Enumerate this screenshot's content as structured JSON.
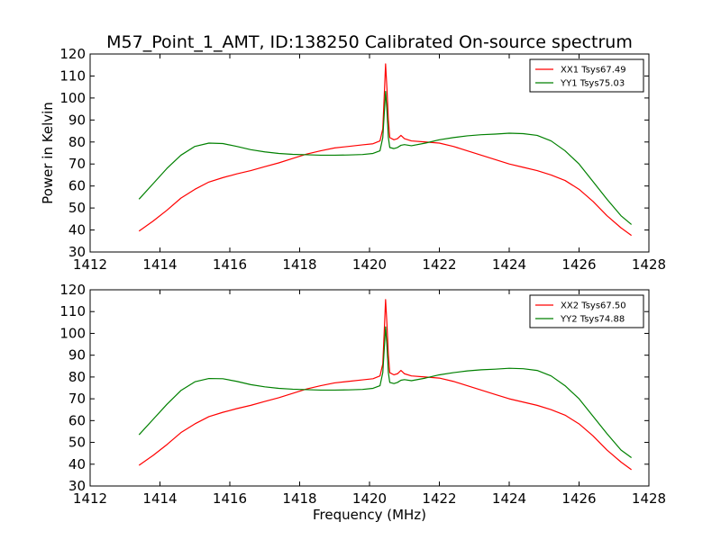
{
  "figure": {
    "title": "M57_Point_1_AMT, ID:138250 Calibrated On-source spectrum"
  },
  "chart_data": [
    {
      "type": "line",
      "title": "M57_Point_1_AMT, ID:138250 Calibrated On-source spectrum",
      "xlabel": "",
      "ylabel": "Power in Kelvin",
      "xlim": [
        1412,
        1428
      ],
      "ylim": [
        30,
        120
      ],
      "xticks": [
        1412,
        1414,
        1416,
        1418,
        1420,
        1422,
        1424,
        1426,
        1428
      ],
      "yticks": [
        30,
        40,
        50,
        60,
        70,
        80,
        90,
        100,
        110,
        120
      ],
      "grid": false,
      "legend_position": "top-right",
      "series": [
        {
          "name": "XX1 Tsys67.49",
          "color": "#ff0000",
          "x": [
            1413.4,
            1413.8,
            1414.2,
            1414.6,
            1415.0,
            1415.4,
            1415.8,
            1416.2,
            1416.6,
            1417.0,
            1417.4,
            1417.8,
            1418.2,
            1418.6,
            1419.0,
            1419.4,
            1419.8,
            1420.1,
            1420.3,
            1420.38,
            1420.43,
            1420.46,
            1420.5,
            1420.54,
            1420.58,
            1420.7,
            1420.8,
            1420.9,
            1421.0,
            1421.2,
            1421.6,
            1422.0,
            1422.4,
            1422.8,
            1423.2,
            1423.6,
            1424.0,
            1424.4,
            1424.8,
            1425.2,
            1425.6,
            1426.0,
            1426.4,
            1426.8,
            1427.2,
            1427.5
          ],
          "values": [
            39.5,
            44.0,
            49.0,
            54.5,
            58.5,
            61.8,
            63.8,
            65.5,
            67.0,
            68.8,
            70.5,
            72.5,
            74.5,
            76.0,
            77.3,
            78.0,
            78.7,
            79.2,
            80.5,
            86.0,
            104.0,
            115.5,
            104.0,
            90.0,
            82.0,
            81.0,
            81.5,
            83.0,
            81.5,
            80.5,
            80.0,
            79.5,
            78.0,
            76.0,
            74.0,
            72.0,
            70.0,
            68.5,
            67.0,
            65.0,
            62.5,
            58.5,
            53.0,
            46.5,
            41.0,
            37.5
          ]
        },
        {
          "name": "YY1 Tsys75.03",
          "color": "#008000",
          "x": [
            1413.4,
            1413.8,
            1414.2,
            1414.6,
            1415.0,
            1415.4,
            1415.8,
            1416.2,
            1416.6,
            1417.0,
            1417.4,
            1417.8,
            1418.2,
            1418.6,
            1419.0,
            1419.4,
            1419.8,
            1420.1,
            1420.3,
            1420.38,
            1420.43,
            1420.46,
            1420.5,
            1420.54,
            1420.58,
            1420.7,
            1420.8,
            1420.9,
            1421.0,
            1421.2,
            1421.6,
            1422.0,
            1422.4,
            1422.8,
            1423.2,
            1423.6,
            1424.0,
            1424.4,
            1424.8,
            1425.2,
            1425.6,
            1426.0,
            1426.4,
            1426.8,
            1427.2,
            1427.5
          ],
          "values": [
            54.0,
            61.0,
            68.0,
            74.0,
            78.0,
            79.5,
            79.3,
            78.0,
            76.5,
            75.5,
            74.8,
            74.4,
            74.2,
            74.0,
            74.0,
            74.1,
            74.3,
            74.8,
            76.0,
            82.0,
            95.0,
            103.0,
            94.0,
            82.0,
            77.5,
            77.0,
            77.5,
            78.5,
            78.8,
            78.3,
            79.5,
            81.0,
            82.0,
            82.8,
            83.3,
            83.6,
            84.0,
            83.8,
            83.0,
            80.5,
            76.0,
            70.0,
            62.0,
            54.0,
            46.5,
            42.5
          ]
        }
      ]
    },
    {
      "type": "line",
      "title": "",
      "xlabel": "Frequency (MHz)",
      "ylabel": "",
      "xlim": [
        1412,
        1428
      ],
      "ylim": [
        30,
        120
      ],
      "xticks": [
        1412,
        1414,
        1416,
        1418,
        1420,
        1422,
        1424,
        1426,
        1428
      ],
      "yticks": [
        30,
        40,
        50,
        60,
        70,
        80,
        90,
        100,
        110,
        120
      ],
      "grid": false,
      "legend_position": "top-right",
      "series": [
        {
          "name": "XX2 Tsys67.50",
          "color": "#ff0000",
          "x": [
            1413.4,
            1413.8,
            1414.2,
            1414.6,
            1415.0,
            1415.4,
            1415.8,
            1416.2,
            1416.6,
            1417.0,
            1417.4,
            1417.8,
            1418.2,
            1418.6,
            1419.0,
            1419.4,
            1419.8,
            1420.1,
            1420.3,
            1420.38,
            1420.43,
            1420.46,
            1420.5,
            1420.54,
            1420.58,
            1420.7,
            1420.8,
            1420.9,
            1421.0,
            1421.2,
            1421.6,
            1422.0,
            1422.4,
            1422.8,
            1423.2,
            1423.6,
            1424.0,
            1424.4,
            1424.8,
            1425.2,
            1425.6,
            1426.0,
            1426.4,
            1426.8,
            1427.2,
            1427.5
          ],
          "values": [
            39.5,
            44.0,
            49.0,
            54.5,
            58.5,
            61.8,
            63.8,
            65.5,
            67.0,
            68.8,
            70.5,
            72.5,
            74.5,
            76.0,
            77.3,
            78.0,
            78.7,
            79.2,
            80.5,
            86.0,
            104.0,
            115.5,
            104.0,
            90.0,
            82.0,
            81.0,
            81.5,
            83.0,
            81.5,
            80.5,
            80.0,
            79.5,
            78.0,
            76.0,
            74.0,
            72.0,
            70.0,
            68.5,
            67.0,
            65.0,
            62.5,
            58.5,
            53.0,
            46.5,
            41.0,
            37.5
          ]
        },
        {
          "name": "YY2 Tsys74.88",
          "color": "#008000",
          "x": [
            1413.4,
            1413.8,
            1414.2,
            1414.6,
            1415.0,
            1415.4,
            1415.8,
            1416.2,
            1416.6,
            1417.0,
            1417.4,
            1417.8,
            1418.2,
            1418.6,
            1419.0,
            1419.4,
            1419.8,
            1420.1,
            1420.3,
            1420.38,
            1420.43,
            1420.46,
            1420.5,
            1420.54,
            1420.58,
            1420.7,
            1420.8,
            1420.9,
            1421.0,
            1421.2,
            1421.6,
            1422.0,
            1422.4,
            1422.8,
            1423.2,
            1423.6,
            1424.0,
            1424.4,
            1424.8,
            1425.2,
            1425.6,
            1426.0,
            1426.4,
            1426.8,
            1427.2,
            1427.5
          ],
          "values": [
            53.5,
            60.5,
            67.5,
            73.8,
            77.8,
            79.3,
            79.2,
            78.0,
            76.5,
            75.5,
            74.8,
            74.4,
            74.2,
            74.0,
            74.0,
            74.1,
            74.3,
            74.8,
            76.0,
            82.0,
            95.0,
            103.0,
            94.0,
            82.0,
            77.5,
            77.0,
            77.5,
            78.5,
            78.8,
            78.3,
            79.5,
            81.0,
            82.0,
            82.8,
            83.3,
            83.6,
            84.0,
            83.8,
            83.0,
            80.5,
            76.0,
            70.0,
            62.0,
            54.0,
            46.5,
            43.0
          ]
        }
      ]
    }
  ]
}
